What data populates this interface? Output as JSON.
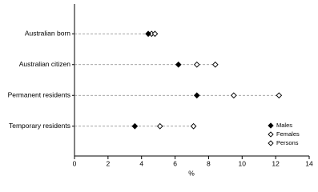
{
  "chart_data": {
    "type": "dot",
    "categories": [
      "Australian born",
      "Australian citizen",
      "Permanent residents",
      "Temporary residents"
    ],
    "series": [
      {
        "name": "Males",
        "color": "#000000",
        "filled": true,
        "values": [
          4.4,
          6.2,
          7.3,
          3.6
        ]
      },
      {
        "name": "Females",
        "color": "#000000",
        "filled": false,
        "values": [
          4.8,
          8.4,
          12.2,
          7.1
        ]
      },
      {
        "name": "Persons",
        "color": "#000000",
        "filled": false,
        "values": [
          4.6,
          7.3,
          9.5,
          5.1
        ]
      }
    ],
    "x_label": "%",
    "xlim": [
      0,
      14
    ],
    "xticks": [
      0,
      2,
      4,
      6,
      8,
      10,
      12,
      14
    ],
    "legend": "lower right"
  }
}
